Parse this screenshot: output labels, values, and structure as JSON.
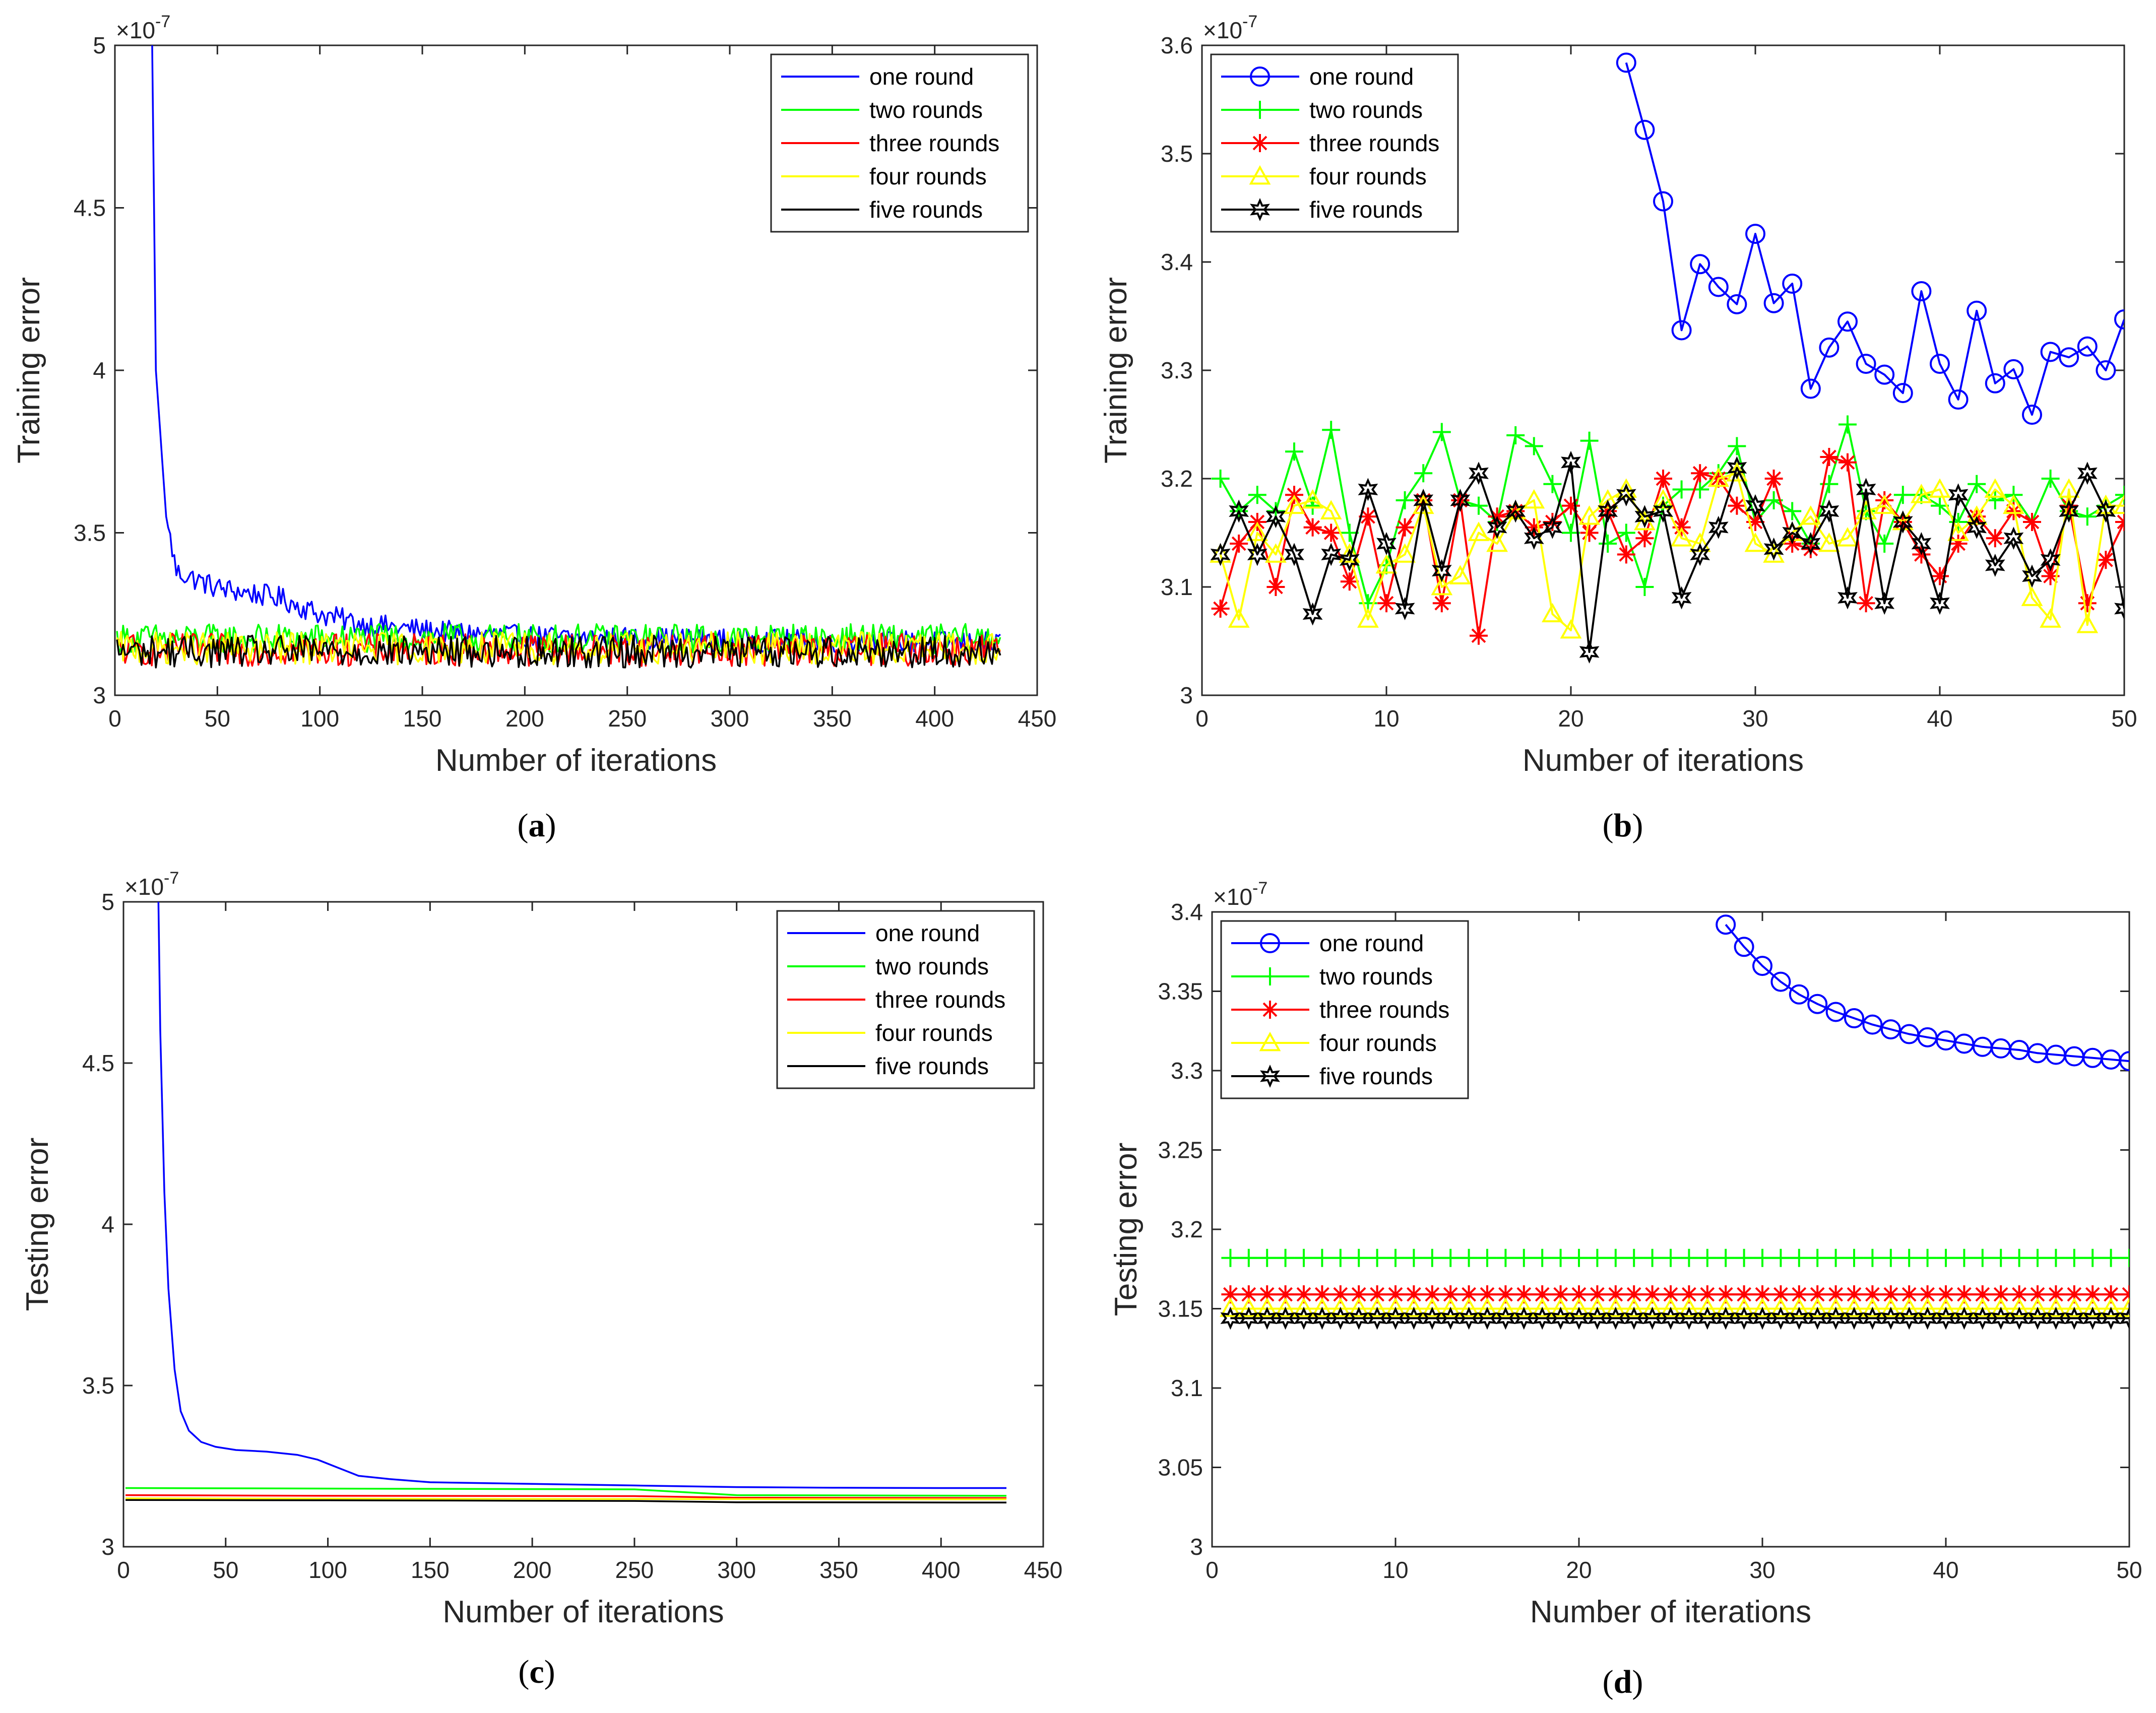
{
  "figure": {
    "exponent_label": "×10",
    "exponent_power": "-7",
    "x_label": "Number of iterations"
  },
  "colors": {
    "one": "#0000ff",
    "two": "#00ff00",
    "three": "#ff0000",
    "four": "#ffff00",
    "five": "#000000",
    "axis": "#262626"
  },
  "chart_data": [
    {
      "id": "a",
      "type": "line",
      "caption_letter": "a",
      "title": "",
      "xlabel": "Number of iterations",
      "ylabel": "Training error",
      "xlim": [
        0,
        450
      ],
      "ylim": [
        3,
        5
      ],
      "y_exponent": "-7",
      "xticks": [
        0,
        50,
        100,
        150,
        200,
        250,
        300,
        350,
        400,
        450
      ],
      "yticks": [
        3,
        3.5,
        4,
        4.5,
        5
      ],
      "ytick_labels": [
        "3",
        "3.5",
        "4",
        "4.5",
        "5"
      ],
      "legend_position": "top-right",
      "x_max_data": 432,
      "series": [
        {
          "name": "one round",
          "key": "one",
          "marker": "none",
          "values_desc": "starts above 5 at ~18, drops to ~3.4 at 30, ~3.3 at 100, fluctuates ~3.17 after 150",
          "decay": {
            "x": [
              18,
              20,
              25,
              30,
              50,
              80,
              100,
              120,
              150,
              200,
              300,
              432
            ],
            "y": [
              5.1,
              4.0,
              3.55,
              3.38,
              3.33,
              3.3,
              3.25,
              3.22,
              3.2,
              3.18,
              3.17,
              3.16
            ]
          }
        },
        {
          "name": "two rounds",
          "key": "two",
          "marker": "none",
          "mean": 3.175,
          "amp": 0.045
        },
        {
          "name": "three rounds",
          "key": "three",
          "marker": "none",
          "mean": 3.14,
          "amp": 0.05
        },
        {
          "name": "four rounds",
          "key": "four",
          "marker": "none",
          "mean": 3.145,
          "amp": 0.05
        },
        {
          "name": "five rounds",
          "key": "five",
          "marker": "none",
          "mean": 3.135,
          "amp": 0.05
        }
      ]
    },
    {
      "id": "b",
      "type": "line",
      "caption_letter": "b",
      "title": "",
      "xlabel": "Number of iterations",
      "ylabel": "Training error",
      "xlim": [
        0,
        50
      ],
      "ylim": [
        3,
        3.6
      ],
      "y_exponent": "-7",
      "xticks": [
        0,
        10,
        20,
        30,
        40,
        50
      ],
      "yticks": [
        3,
        3.1,
        3.2,
        3.3,
        3.4,
        3.5,
        3.6
      ],
      "ytick_labels": [
        "3",
        "3.1",
        "3.2",
        "3.3",
        "3.4",
        "3.5",
        "3.6"
      ],
      "legend_position": "top-left",
      "series": [
        {
          "name": "one round",
          "key": "one",
          "marker": "circle",
          "x": [
            23,
            24,
            25,
            26,
            27,
            28,
            29,
            30,
            31,
            32,
            33,
            34,
            35,
            36,
            37,
            38,
            39,
            40,
            41,
            42,
            43,
            44,
            45,
            46,
            47,
            48,
            49,
            50
          ],
          "y": [
            3.584,
            3.522,
            3.456,
            3.337,
            3.398,
            3.377,
            3.361,
            3.426,
            3.362,
            3.38,
            3.283,
            3.321,
            3.345,
            3.306,
            3.296,
            3.279,
            3.373,
            3.306,
            3.273,
            3.355,
            3.288,
            3.301,
            3.259,
            3.317,
            3.312,
            3.322,
            3.3,
            3.347
          ]
        },
        {
          "name": "two rounds",
          "key": "two",
          "marker": "plus",
          "x": [
            1,
            2,
            3,
            4,
            5,
            6,
            7,
            8,
            9,
            10,
            11,
            12,
            13,
            14,
            15,
            16,
            17,
            18,
            19,
            20,
            21,
            22,
            23,
            24,
            25,
            26,
            27,
            28,
            29,
            30,
            31,
            32,
            33,
            34,
            35,
            36,
            37,
            38,
            39,
            40,
            41,
            42,
            43,
            44,
            45,
            46,
            47,
            48,
            49,
            50
          ],
          "y": [
            3.2,
            3.17,
            3.185,
            3.17,
            3.225,
            3.175,
            3.245,
            3.15,
            3.085,
            3.12,
            3.18,
            3.205,
            3.243,
            3.18,
            3.175,
            3.16,
            3.24,
            3.23,
            3.195,
            3.15,
            3.235,
            3.14,
            3.15,
            3.1,
            3.175,
            3.19,
            3.19,
            3.205,
            3.23,
            3.16,
            3.18,
            3.17,
            3.14,
            3.195,
            3.25,
            3.17,
            3.14,
            3.185,
            3.185,
            3.175,
            3.16,
            3.195,
            3.18,
            3.185,
            3.16,
            3.2,
            3.17,
            3.165,
            3.175,
            3.185
          ]
        },
        {
          "name": "three rounds",
          "key": "three",
          "marker": "asterisk",
          "x": [
            1,
            2,
            3,
            4,
            5,
            6,
            7,
            8,
            9,
            10,
            11,
            12,
            13,
            14,
            15,
            16,
            17,
            18,
            19,
            20,
            21,
            22,
            23,
            24,
            25,
            26,
            27,
            28,
            29,
            30,
            31,
            32,
            33,
            34,
            35,
            36,
            37,
            38,
            39,
            40,
            41,
            42,
            43,
            44,
            45,
            46,
            47,
            48,
            49,
            50
          ],
          "y": [
            3.08,
            3.14,
            3.16,
            3.1,
            3.185,
            3.155,
            3.15,
            3.105,
            3.165,
            3.085,
            3.155,
            3.18,
            3.085,
            3.18,
            3.055,
            3.165,
            3.17,
            3.155,
            3.16,
            3.175,
            3.15,
            3.17,
            3.13,
            3.145,
            3.2,
            3.155,
            3.205,
            3.2,
            3.175,
            3.16,
            3.2,
            3.14,
            3.135,
            3.22,
            3.215,
            3.085,
            3.18,
            3.16,
            3.13,
            3.11,
            3.14,
            3.165,
            3.145,
            3.17,
            3.16,
            3.11,
            3.175,
            3.085,
            3.125,
            3.16
          ]
        },
        {
          "name": "four rounds",
          "key": "four",
          "marker": "triangle",
          "x": [
            1,
            2,
            3,
            4,
            5,
            6,
            7,
            8,
            9,
            10,
            11,
            12,
            13,
            14,
            15,
            16,
            17,
            18,
            19,
            20,
            21,
            22,
            23,
            24,
            25,
            26,
            27,
            28,
            29,
            30,
            31,
            32,
            33,
            34,
            35,
            36,
            37,
            38,
            39,
            40,
            41,
            42,
            43,
            44,
            45,
            46,
            47,
            48,
            49,
            50
          ],
          "y": [
            3.13,
            3.07,
            3.15,
            3.13,
            3.175,
            3.18,
            3.17,
            3.13,
            3.07,
            3.12,
            3.13,
            3.175,
            3.1,
            3.11,
            3.15,
            3.14,
            3.17,
            3.18,
            3.075,
            3.06,
            3.165,
            3.18,
            3.19,
            3.16,
            3.18,
            3.145,
            3.14,
            3.2,
            3.205,
            3.14,
            3.13,
            3.15,
            3.165,
            3.14,
            3.145,
            3.17,
            3.175,
            3.16,
            3.185,
            3.19,
            3.15,
            3.165,
            3.19,
            3.175,
            3.09,
            3.07,
            3.19,
            3.065,
            3.175,
            3.175
          ]
        },
        {
          "name": "five rounds",
          "key": "five",
          "marker": "star",
          "x": [
            1,
            2,
            3,
            4,
            5,
            6,
            7,
            8,
            9,
            10,
            11,
            12,
            13,
            14,
            15,
            16,
            17,
            18,
            19,
            20,
            21,
            22,
            23,
            24,
            25,
            26,
            27,
            28,
            29,
            30,
            31,
            32,
            33,
            34,
            35,
            36,
            37,
            38,
            39,
            40,
            41,
            42,
            43,
            44,
            45,
            46,
            47,
            48,
            49,
            50
          ],
          "y": [
            3.13,
            3.17,
            3.13,
            3.165,
            3.13,
            3.075,
            3.13,
            3.125,
            3.19,
            3.14,
            3.08,
            3.18,
            3.115,
            3.18,
            3.205,
            3.155,
            3.17,
            3.145,
            3.155,
            3.215,
            3.04,
            3.17,
            3.185,
            3.165,
            3.17,
            3.09,
            3.13,
            3.155,
            3.21,
            3.175,
            3.135,
            3.15,
            3.14,
            3.17,
            3.09,
            3.19,
            3.085,
            3.16,
            3.14,
            3.085,
            3.185,
            3.155,
            3.12,
            3.145,
            3.11,
            3.125,
            3.17,
            3.205,
            3.17,
            3.08
          ]
        }
      ]
    },
    {
      "id": "c",
      "type": "line",
      "caption_letter": "c",
      "title": "",
      "xlabel": "Number of iterations",
      "ylabel": "Testing error",
      "xlim": [
        0,
        450
      ],
      "ylim": [
        3,
        5
      ],
      "y_exponent": "-7",
      "xticks": [
        0,
        50,
        100,
        150,
        200,
        250,
        300,
        350,
        400,
        450
      ],
      "yticks": [
        3,
        3.5,
        4,
        4.5,
        5
      ],
      "ytick_labels": [
        "3",
        "3.5",
        "4",
        "4.5",
        "5"
      ],
      "legend_position": "top-right",
      "series": [
        {
          "name": "one round",
          "key": "one",
          "marker": "none",
          "x": [
            17,
            18,
            20,
            22,
            25,
            28,
            32,
            38,
            45,
            55,
            70,
            85,
            95,
            105,
            115,
            130,
            150,
            200,
            250,
            300,
            350,
            400,
            432
          ],
          "y": [
            5.05,
            4.6,
            4.1,
            3.8,
            3.55,
            3.42,
            3.36,
            3.325,
            3.31,
            3.3,
            3.295,
            3.285,
            3.27,
            3.245,
            3.22,
            3.21,
            3.2,
            3.195,
            3.19,
            3.185,
            3.183,
            3.182,
            3.182
          ]
        },
        {
          "name": "two rounds",
          "key": "two",
          "marker": "none",
          "x": [
            1,
            250,
            300,
            432
          ],
          "y": [
            3.182,
            3.178,
            3.16,
            3.158
          ]
        },
        {
          "name": "three rounds",
          "key": "three",
          "marker": "none",
          "x": [
            1,
            100,
            250,
            300,
            432
          ],
          "y": [
            3.16,
            3.158,
            3.157,
            3.152,
            3.151
          ]
        },
        {
          "name": "four rounds",
          "key": "four",
          "marker": "none",
          "x": [
            1,
            250,
            432
          ],
          "y": [
            3.15,
            3.148,
            3.147
          ]
        },
        {
          "name": "five rounds",
          "key": "five",
          "marker": "none",
          "x": [
            1,
            100,
            250,
            300,
            432
          ],
          "y": [
            3.145,
            3.144,
            3.142,
            3.138,
            3.137
          ]
        }
      ]
    },
    {
      "id": "d",
      "type": "line",
      "caption_letter": "d",
      "title": "",
      "xlabel": "Number of iterations",
      "ylabel": "Testing error",
      "xlim": [
        0,
        50
      ],
      "ylim": [
        3,
        3.4
      ],
      "y_exponent": "-7",
      "xticks": [
        0,
        10,
        20,
        30,
        40,
        50
      ],
      "yticks": [
        3,
        3.05,
        3.1,
        3.15,
        3.2,
        3.25,
        3.3,
        3.35,
        3.4
      ],
      "ytick_labels": [
        "3",
        "3.05",
        "3.1",
        "3.15",
        "3.2",
        "3.25",
        "3.3",
        "3.35",
        "3.4"
      ],
      "legend_position": "top-left",
      "series": [
        {
          "name": "one round",
          "key": "one",
          "marker": "circle",
          "x": [
            28,
            29,
            30,
            31,
            32,
            33,
            34,
            35,
            36,
            37,
            38,
            39,
            40,
            41,
            42,
            43,
            44,
            45,
            46,
            47,
            48,
            49,
            50
          ],
          "y": [
            3.392,
            3.378,
            3.366,
            3.356,
            3.348,
            3.342,
            3.337,
            3.333,
            3.329,
            3.326,
            3.323,
            3.321,
            3.319,
            3.317,
            3.315,
            3.314,
            3.313,
            3.311,
            3.31,
            3.309,
            3.308,
            3.307,
            3.306
          ]
        },
        {
          "name": "two rounds",
          "key": "two",
          "marker": "plus",
          "constant": 3.182,
          "x_range": [
            1,
            50
          ]
        },
        {
          "name": "three rounds",
          "key": "three",
          "marker": "asterisk",
          "constant": 3.159,
          "x_range": [
            1,
            50
          ]
        },
        {
          "name": "four rounds",
          "key": "four",
          "marker": "triangle",
          "constant": 3.15,
          "x_range": [
            1,
            50
          ]
        },
        {
          "name": "five rounds",
          "key": "five",
          "marker": "star",
          "constant": 3.144,
          "x_range": [
            1,
            50
          ]
        }
      ]
    }
  ]
}
